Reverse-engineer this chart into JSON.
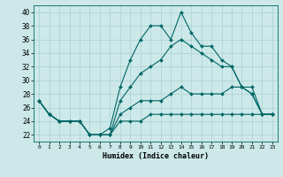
{
  "xlabel": "Humidex (Indice chaleur)",
  "bg_color": "#cce8e8",
  "line_color": "#006666",
  "grid_color": "#aad0d0",
  "xlim": [
    -0.5,
    23.5
  ],
  "ylim": [
    21,
    41
  ],
  "yticks": [
    22,
    24,
    26,
    28,
    30,
    32,
    34,
    36,
    38,
    40
  ],
  "xticks": [
    0,
    1,
    2,
    3,
    4,
    5,
    6,
    7,
    8,
    9,
    10,
    11,
    12,
    13,
    14,
    15,
    16,
    17,
    18,
    19,
    20,
    21,
    22,
    23
  ],
  "xtick_labels": [
    "0",
    "1",
    "2",
    "3",
    "4",
    "5",
    "6",
    "7",
    "8",
    "9",
    "10",
    "11",
    "12",
    "13",
    "14",
    "15",
    "16",
    "17",
    "18",
    "19",
    "20",
    "21",
    "22",
    "23"
  ],
  "series": [
    [
      27,
      25,
      24,
      24,
      24,
      22,
      22,
      23,
      29,
      33,
      36,
      38,
      38,
      36,
      40,
      37,
      35,
      35,
      33,
      32,
      29,
      28,
      25,
      25
    ],
    [
      27,
      25,
      24,
      24,
      24,
      22,
      22,
      22,
      27,
      29,
      31,
      32,
      33,
      35,
      36,
      35,
      34,
      33,
      32,
      32,
      29,
      28,
      25,
      25
    ],
    [
      27,
      25,
      24,
      24,
      24,
      22,
      22,
      22,
      25,
      26,
      27,
      27,
      27,
      28,
      29,
      28,
      28,
      28,
      28,
      29,
      29,
      29,
      25,
      25
    ],
    [
      27,
      25,
      24,
      24,
      24,
      22,
      22,
      22,
      24,
      24,
      24,
      25,
      25,
      25,
      25,
      25,
      25,
      25,
      25,
      25,
      25,
      25,
      25,
      25
    ]
  ]
}
